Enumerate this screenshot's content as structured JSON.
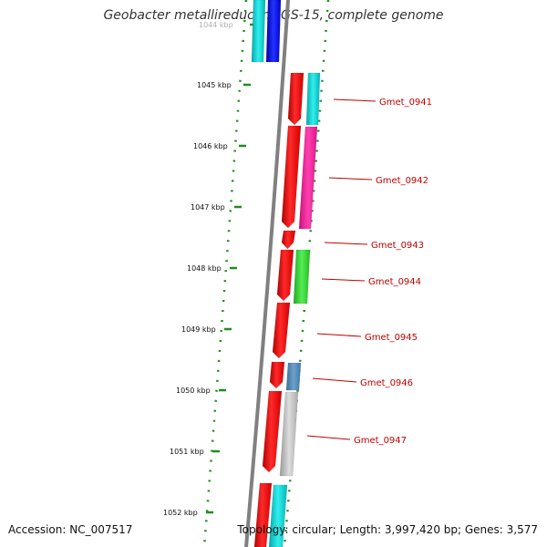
{
  "title": "Geobacter metallireducens GS-15, complete genome",
  "accession": "Accession: NC_007517",
  "summary": "Topology: circular; Length: 3,997,420 bp; Genes: 3,577",
  "colors": {
    "backbone": "#808080",
    "ticks": "#228b22",
    "label": "#c00000",
    "red": "#ff0000",
    "cyan": "#00cccc",
    "blue": "#0000ee",
    "magenta": "#ff1493",
    "green": "#33cc33",
    "steelblue": "#4682b4",
    "gray": "#bbbbbb"
  },
  "kbp_labels": [
    "1044 kbp",
    "1045 kbp",
    "1046 kbp",
    "1047 kbp",
    "1048 kbp",
    "1049 kbp",
    "1050 kbp",
    "1051 kbp",
    "1052 kbp"
  ],
  "genes": [
    {
      "name": "Gmet_0941"
    },
    {
      "name": "Gmet_0942"
    },
    {
      "name": "Gmet_0943"
    },
    {
      "name": "Gmet_0944"
    },
    {
      "name": "Gmet_0945"
    },
    {
      "name": "Gmet_0946"
    },
    {
      "name": "Gmet_0947"
    }
  ]
}
